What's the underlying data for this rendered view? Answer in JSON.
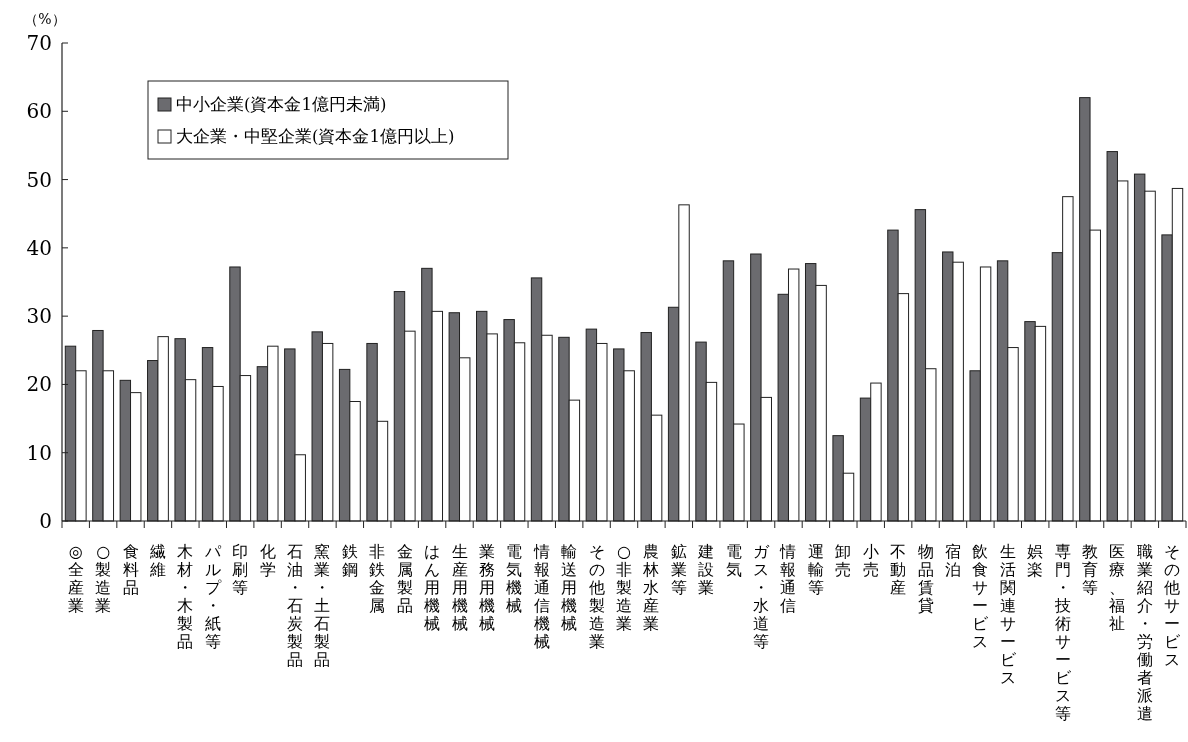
{
  "chart_data": {
    "type": "bar",
    "ylabel": "（%）",
    "categories": [
      "◎全産業",
      "○製造業",
      "食料品",
      "繊維",
      "木材・木製品",
      "パルプ・紙等",
      "印刷等",
      "化学",
      "石油・石炭製品",
      "窯業・土石製品",
      "鉄鋼",
      "非鉄金属",
      "金属製品",
      "はん用機械",
      "生産用機械",
      "業務用機械",
      "電気機械",
      "情報通信機械",
      "輸送用機械",
      "その他製造業",
      "○非製造業",
      "農林水産業",
      "鉱業等",
      "建設業",
      "電気",
      "ガス・水道等",
      "情報通信",
      "運輸等",
      "卸売",
      "小売",
      "不動産",
      "物品賃貸",
      "宿泊",
      "飲食サービス",
      "生活関連サービス",
      "娯楽",
      "専門・技術サービス等",
      "教育等",
      "医療、福祉",
      "職業紹介・労働者派遣",
      "その他サービス"
    ],
    "series": [
      {
        "name": "中小企業(資本金1億円未満)",
        "color": "#6b6b6f",
        "values": [
          25.6,
          27.9,
          20.6,
          23.5,
          26.7,
          25.4,
          37.2,
          22.6,
          25.2,
          27.7,
          22.2,
          26.0,
          33.6,
          37.0,
          30.5,
          30.7,
          29.5,
          35.6,
          26.9,
          28.1,
          25.2,
          27.6,
          31.3,
          26.2,
          38.1,
          39.1,
          33.2,
          37.7,
          12.5,
          18.0,
          42.6,
          45.6,
          39.4,
          22.0,
          38.1,
          29.2,
          39.3,
          62.0,
          54.1,
          50.8,
          41.9
        ]
      },
      {
        "name": "大企業・中堅企業(資本金1億円以上)",
        "color": "#ffffff",
        "values": [
          22.0,
          22.0,
          18.8,
          27.0,
          20.7,
          19.7,
          21.3,
          25.6,
          9.7,
          26.0,
          17.5,
          14.6,
          27.8,
          30.7,
          23.9,
          27.4,
          26.1,
          27.2,
          17.7,
          26.0,
          22.0,
          15.5,
          46.3,
          20.3,
          14.2,
          18.1,
          36.9,
          34.5,
          7.0,
          20.2,
          33.3,
          22.3,
          37.9,
          37.2,
          25.4,
          28.5,
          47.5,
          42.6,
          49.8,
          48.3,
          48.7
        ]
      }
    ],
    "ylim": [
      0,
      70
    ],
    "yticks": [
      0,
      10,
      20,
      30,
      40,
      50,
      60,
      70
    ],
    "legend": "top left"
  }
}
